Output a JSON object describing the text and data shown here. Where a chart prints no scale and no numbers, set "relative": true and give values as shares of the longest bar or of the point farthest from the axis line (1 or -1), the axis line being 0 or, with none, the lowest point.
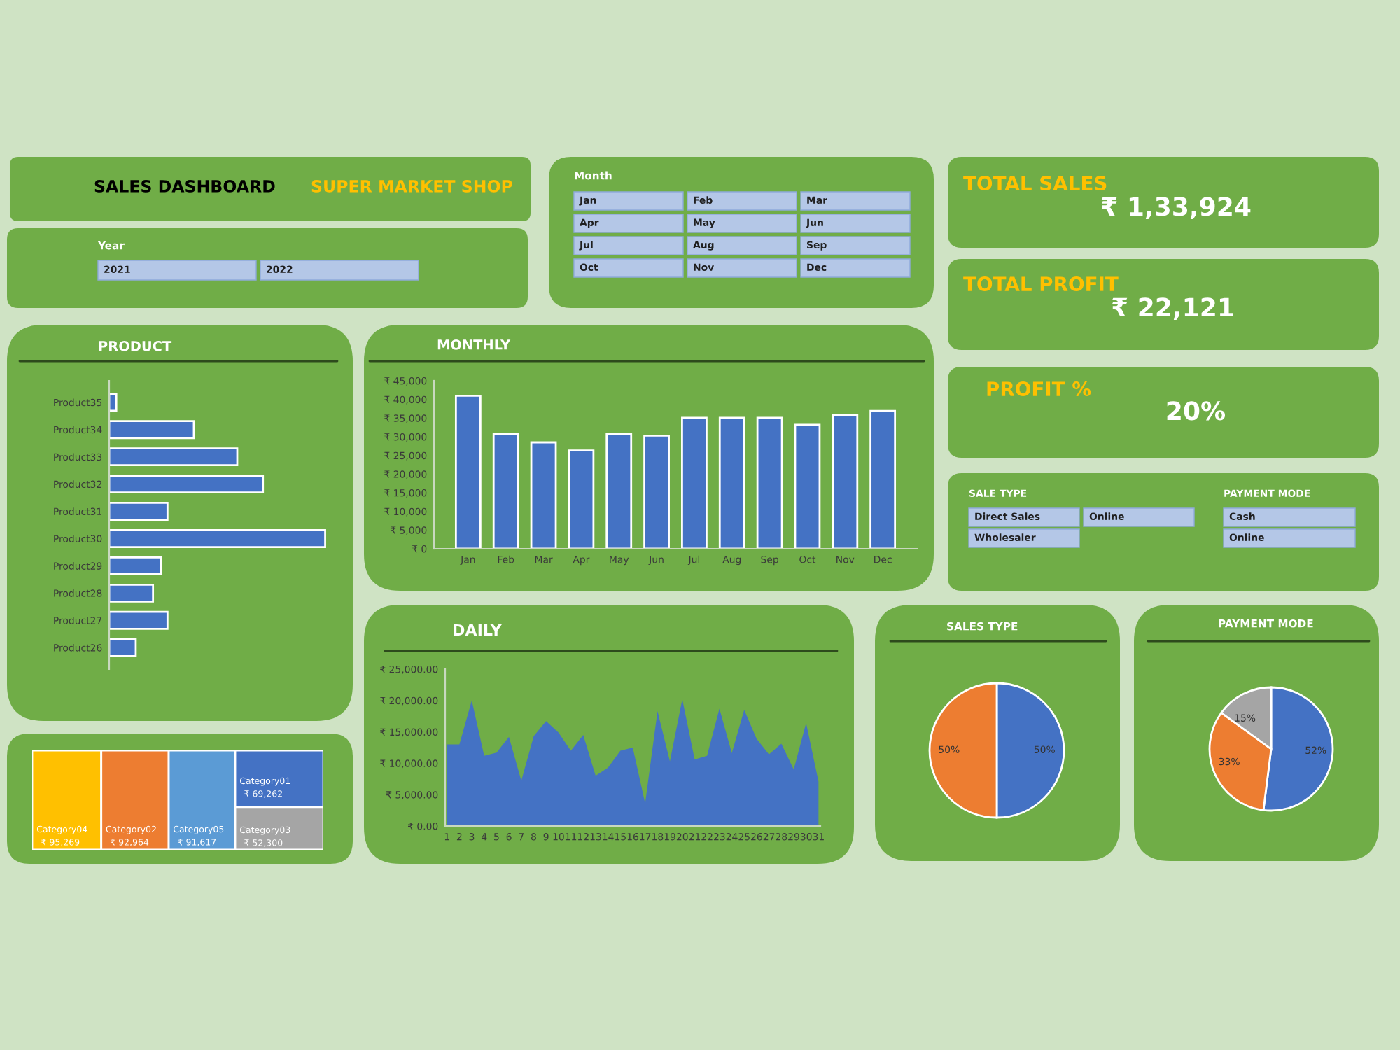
{
  "chart_data": [
    {
      "type": "other",
      "title": "SALES DASHBOARD",
      "subtitle": "SUPER MARKET SHOP"
    },
    {
      "type": "other",
      "title": "Year",
      "annotations": [
        "2021",
        "2022"
      ]
    },
    {
      "type": "other",
      "title": "Month",
      "annotations": [
        "Jan",
        "Feb",
        "Mar",
        "Apr",
        "May",
        "Jun",
        "Jul",
        "Aug",
        "Sep",
        "Oct",
        "Nov",
        "Dec"
      ]
    },
    {
      "type": "other",
      "title": "TOTAL SALES",
      "annotations": [
        "₹ 1,33,924"
      ]
    },
    {
      "type": "other",
      "title": "TOTAL PROFIT",
      "annotations": [
        "₹ 22,121"
      ]
    },
    {
      "type": "bar",
      "title": "PRODUCT",
      "orientation": "horizontal",
      "relative": true,
      "color": "#4472c4",
      "categories": [
        "Product35",
        "Product34",
        "Product33",
        "Product32",
        "Product31",
        "Product30",
        "Product29",
        "Product28",
        "Product27",
        "Product26"
      ],
      "values": [
        0.033,
        0.392,
        0.593,
        0.712,
        0.27,
        1,
        0.239,
        0.203,
        0.27,
        0.123
      ]
    },
    {
      "type": "bar",
      "title": "MONTHLY",
      "color": "#4472c4",
      "categories": [
        "Jan",
        "Feb",
        "Mar",
        "Apr",
        "May",
        "Jun",
        "Jul",
        "Aug",
        "Sep",
        "Oct",
        "Nov",
        "Dec"
      ],
      "values": [
        41000,
        30800,
        28500,
        26300,
        30800,
        30300,
        35100,
        35100,
        35100,
        33200,
        35900,
        36900
      ],
      "ylim": [
        0,
        45000
      ],
      "yticks": [
        {
          "value": 0,
          "label": "₹ 0"
        },
        {
          "value": 5000,
          "label": "₹ 5,000"
        },
        {
          "value": 10000,
          "label": "₹ 10,000"
        },
        {
          "value": 15000,
          "label": "₹ 15,000"
        },
        {
          "value": 20000,
          "label": "₹ 20,000"
        },
        {
          "value": 25000,
          "label": "₹ 25,000"
        },
        {
          "value": 30000,
          "label": "₹ 30,000"
        },
        {
          "value": 35000,
          "label": "₹ 35,000"
        },
        {
          "value": 40000,
          "label": "₹ 40,000"
        },
        {
          "value": 45000,
          "label": "₹ 45,000"
        }
      ]
    },
    {
      "type": "other",
      "title": "PROFIT %",
      "annotations": [
        "20%"
      ]
    },
    {
      "type": "other",
      "title": "SALE TYPE",
      "annotations": [
        "Direct Sales",
        "Online",
        "Wholesaler"
      ]
    },
    {
      "type": "other",
      "title": "PAYMENT MODE",
      "annotations": [
        "Cash",
        "Online"
      ]
    },
    {
      "type": "other",
      "categories": [
        "Category04",
        "Category02",
        "Category05",
        "Category01",
        "Category03"
      ],
      "values": [
        95269,
        92964,
        91617,
        69262,
        52300
      ],
      "value_labels": [
        "₹ 95,269",
        "₹ 92,964",
        "₹ 91,617",
        "₹ 69,262",
        "₹ 52,300"
      ],
      "colors": [
        "#ffc000",
        "#ed7d31",
        "#5b9bd5",
        "#4472c4",
        "#a5a5a5"
      ]
    },
    {
      "type": "area",
      "title": "DAILY",
      "color": "#4472c4",
      "categories": [
        "1",
        "2",
        "3",
        "4",
        "5",
        "6",
        "7",
        "8",
        "9",
        "10",
        "11",
        "12",
        "13",
        "14",
        "15",
        "16",
        "17",
        "18",
        "19",
        "20",
        "21",
        "22",
        "23",
        "24",
        "25",
        "26",
        "27",
        "28",
        "29",
        "30",
        "31"
      ],
      "values": [
        13000,
        13000,
        20000,
        11200,
        11700,
        14200,
        7200,
        14300,
        16700,
        14900,
        12000,
        14500,
        8000,
        9300,
        12000,
        12500,
        3600,
        18300,
        10300,
        20200,
        10600,
        11200,
        18700,
        11600,
        18500,
        13900,
        11400,
        13100,
        9000,
        16400,
        7100
      ],
      "ylim": [
        0,
        25000
      ],
      "yticks": [
        {
          "value": 0,
          "label": "₹ 0.00"
        },
        {
          "value": 5000,
          "label": "₹ 5,000.00"
        },
        {
          "value": 10000,
          "label": "₹ 10,000.00"
        },
        {
          "value": 15000,
          "label": "₹ 15,000.00"
        },
        {
          "value": 20000,
          "label": "₹ 20,000.00"
        },
        {
          "value": 25000,
          "label": "₹ 25,000.00"
        }
      ]
    },
    {
      "type": "pie",
      "title": "SALES TYPE",
      "categories": [
        null,
        null
      ],
      "values": [
        50,
        50
      ],
      "value_labels": [
        "50%",
        "50%"
      ],
      "colors": [
        "#4472c4",
        "#ed7d31"
      ]
    },
    {
      "type": "pie",
      "title": "PAYMENT MODE",
      "categories": [
        null,
        null,
        null
      ],
      "values": [
        52,
        33,
        15
      ],
      "value_labels": [
        "52%",
        "33%",
        "15%"
      ],
      "colors": [
        "#4472c4",
        "#ed7d31",
        "#a5a5a5"
      ]
    }
  ]
}
